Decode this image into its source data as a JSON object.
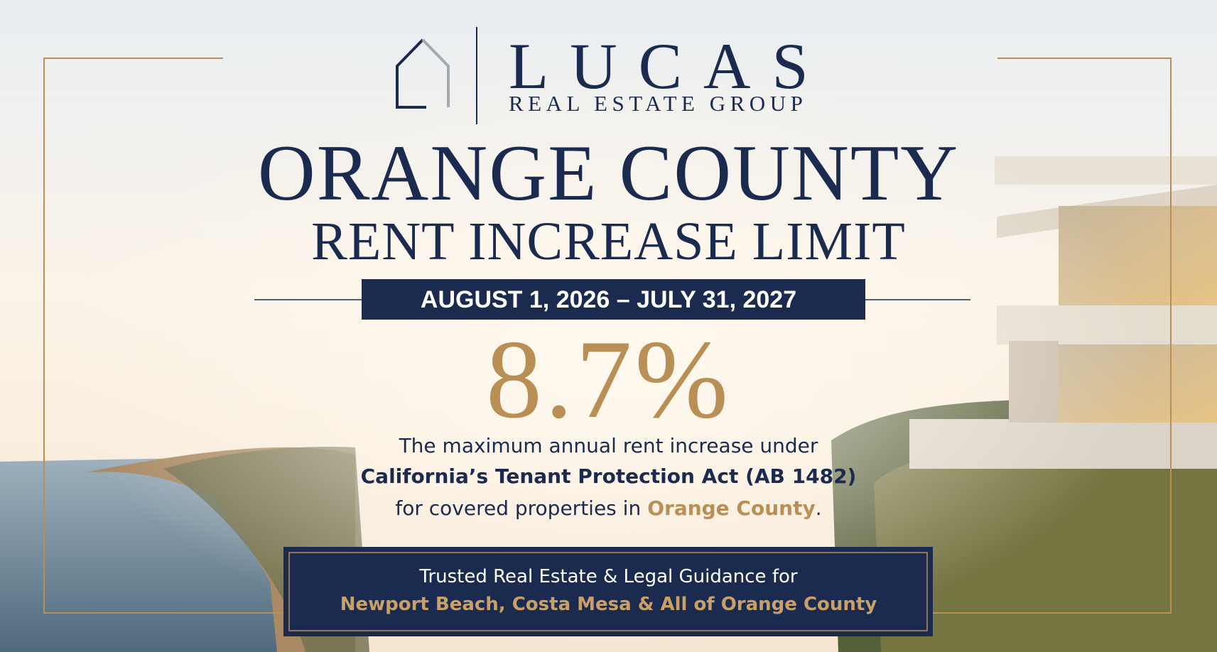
{
  "logo": {
    "name": "LUCAS",
    "subtitle": "REAL ESTATE GROUP"
  },
  "headline": {
    "line1": "ORANGE COUNTY",
    "line2": "RENT INCREASE LIMIT"
  },
  "date_range": "AUGUST 1, 2026 – JULY 31, 2027",
  "rate": "8.7%",
  "description": {
    "line1": "The maximum annual rent increase under",
    "line2": "California’s Tenant Protection Act (AB 1482)",
    "line3": {
      "before": "for covered properties in",
      "highlight": "Orange County",
      "after": "."
    }
  },
  "footer": {
    "line1": "Trusted Real Estate & Legal Guidance for",
    "line2": "Newport Beach, Costa Mesa & All of Orange County"
  }
}
